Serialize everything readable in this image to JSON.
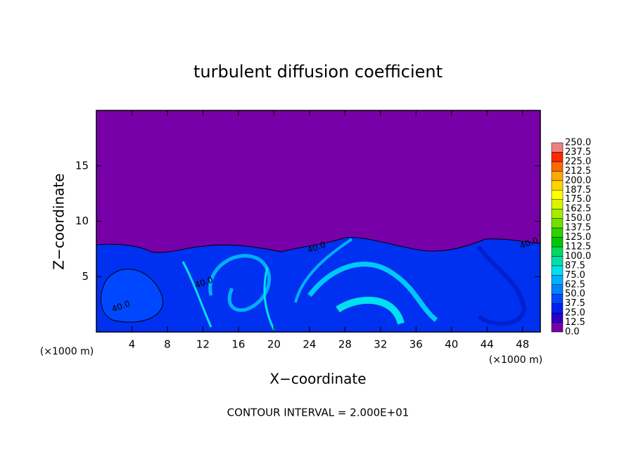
{
  "chart_data": {
    "type": "contour",
    "title": "turbulent diffusion coefficient",
    "x_label": "X−coordinate",
    "y_label": "Z−coordinate",
    "x_unit": "(×1000 m)",
    "footer": "CONTOUR INTERVAL = 2.000E+01",
    "xlim": [
      0,
      50
    ],
    "xticks": [
      4,
      8,
      12,
      16,
      20,
      24,
      28,
      32,
      36,
      40,
      44,
      48
    ],
    "ylim": [
      0,
      20
    ],
    "yticks": [
      5,
      10,
      15
    ],
    "colorbar": {
      "levels": [
        {
          "value": 0,
          "label": "0.0"
        },
        12.5,
        {
          "value": 25,
          "label": "25.0"
        },
        37.5,
        {
          "value": 50,
          "label": "50.0"
        },
        62.5,
        {
          "value": 75,
          "label": "75.0"
        },
        87.5,
        {
          "value": 100,
          "label": "100.0"
        },
        112.5,
        {
          "value": 125,
          "label": "125.0"
        },
        137.5,
        {
          "value": 150,
          "label": "150.0"
        },
        162.5,
        {
          "value": 175,
          "label": "175.0"
        },
        187.5,
        {
          "value": 200,
          "label": "200.0"
        },
        212.5,
        {
          "value": 225,
          "label": "225.0"
        },
        237.5,
        {
          "value": 250,
          "label": "250.0"
        }
      ],
      "colors": [
        "#7800a8",
        "#2a00c8",
        "#0020f0",
        "#0048ff",
        "#0080ff",
        "#00b0ff",
        "#00e0f0",
        "#00e0a8",
        "#00d860",
        "#00c800",
        "#30d000",
        "#70e000",
        "#a8ec00",
        "#d8f400",
        "#ffff00",
        "#ffd400",
        "#ffa800",
        "#ff6800",
        "#ff2800",
        "#f08080"
      ]
    },
    "contour_labels": [
      {
        "value": 40,
        "label": "40.0"
      },
      {
        "value": 40,
        "label": "40.0"
      },
      {
        "value": 40,
        "label": "40.0"
      },
      {
        "value": 40,
        "label": "40.0"
      }
    ]
  }
}
